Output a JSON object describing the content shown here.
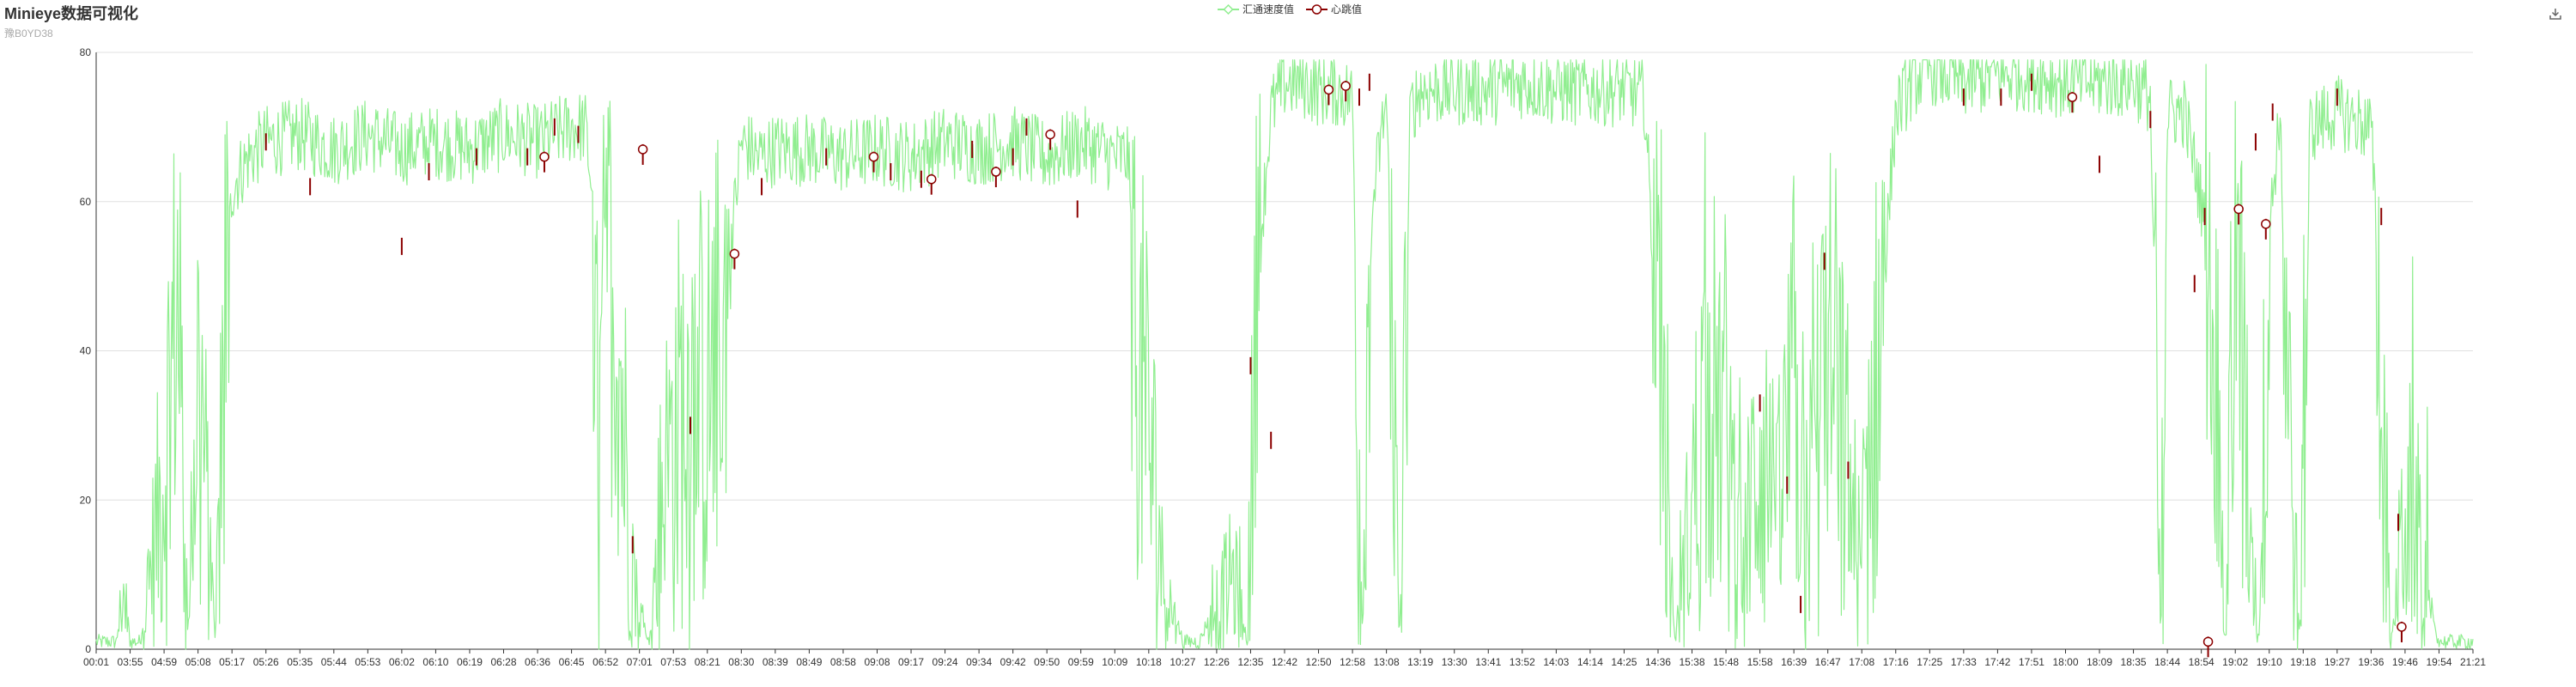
{
  "title": "Minieye数据可视化",
  "subtitle": "豫B0YD38",
  "legend": [
    {
      "name": "汇通速度值",
      "color": "#90ee90",
      "icon": "diamond-hollow-line"
    },
    {
      "name": "心跳值",
      "color": "#8b0000",
      "icon": "circle-hollow-line"
    }
  ],
  "toolbox": {
    "icon": "download-icon"
  },
  "chart_data": {
    "type": "line",
    "grid": true,
    "legend_position": "top-center",
    "ylim": [
      0,
      80
    ],
    "y_ticks": [
      0,
      20,
      40,
      60,
      80
    ],
    "x_tick_labels": [
      "00:01",
      "03:55",
      "04:59",
      "05:08",
      "05:17",
      "05:26",
      "05:35",
      "05:44",
      "05:53",
      "06:02",
      "06:10",
      "06:19",
      "06:28",
      "06:36",
      "06:45",
      "06:52",
      "07:01",
      "07:53",
      "08:21",
      "08:30",
      "08:39",
      "08:49",
      "08:58",
      "09:08",
      "09:17",
      "09:24",
      "09:34",
      "09:42",
      "09:50",
      "09:59",
      "10:09",
      "10:18",
      "10:27",
      "12:26",
      "12:35",
      "12:42",
      "12:50",
      "12:58",
      "13:08",
      "13:19",
      "13:30",
      "13:41",
      "13:52",
      "14:03",
      "14:14",
      "14:25",
      "14:36",
      "15:38",
      "15:48",
      "15:58",
      "16:39",
      "16:47",
      "17:08",
      "17:16",
      "17:25",
      "17:33",
      "17:42",
      "17:51",
      "18:00",
      "18:09",
      "18:35",
      "18:44",
      "18:54",
      "19:02",
      "19:10",
      "19:18",
      "19:27",
      "19:36",
      "19:46",
      "19:54",
      "21:21"
    ],
    "series": [
      {
        "name": "汇通速度值",
        "color": "#90ee90",
        "style": "line",
        "anchors": [
          [
            0,
            0
          ],
          [
            0.6,
            0
          ],
          [
            0.8,
            9
          ],
          [
            1.0,
            0
          ],
          [
            1.3,
            0
          ],
          [
            2.0,
            24
          ],
          [
            2.4,
            48
          ],
          [
            2.7,
            0
          ],
          [
            3.0,
            40
          ],
          [
            3.5,
            0
          ],
          [
            3.8,
            45
          ],
          [
            4.0,
            62
          ],
          [
            4.5,
            66
          ],
          [
            5.0,
            68
          ],
          [
            6.0,
            69
          ],
          [
            6.5,
            68
          ],
          [
            7.0,
            67
          ],
          [
            8.0,
            69
          ],
          [
            9.0,
            67
          ],
          [
            10,
            68
          ],
          [
            11,
            67
          ],
          [
            12,
            69
          ],
          [
            13,
            68
          ],
          [
            14,
            70
          ],
          [
            14.4,
            70
          ],
          [
            14.6,
            62
          ],
          [
            14.8,
            20
          ],
          [
            15.0,
            55
          ],
          [
            15.4,
            40
          ],
          [
            15.8,
            10
          ],
          [
            16.0,
            5
          ],
          [
            16.3,
            0
          ],
          [
            16.6,
            18
          ],
          [
            17.0,
            28
          ],
          [
            17.5,
            35
          ],
          [
            18.0,
            33
          ],
          [
            18.5,
            45
          ],
          [
            19.0,
            68
          ],
          [
            19.5,
            66
          ],
          [
            20,
            67
          ],
          [
            21,
            67
          ],
          [
            22,
            66
          ],
          [
            23,
            67
          ],
          [
            24,
            66
          ],
          [
            25,
            68
          ],
          [
            26,
            67
          ],
          [
            27,
            68
          ],
          [
            28,
            66
          ],
          [
            29,
            68
          ],
          [
            30,
            66
          ],
          [
            30.4,
            66
          ],
          [
            30.6,
            40
          ],
          [
            31.0,
            30
          ],
          [
            31.4,
            10
          ],
          [
            32.0,
            0
          ],
          [
            32.5,
            0
          ],
          [
            33.0,
            6
          ],
          [
            33.5,
            10
          ],
          [
            33.9,
            0
          ],
          [
            34.2,
            50
          ],
          [
            34.6,
            72
          ],
          [
            35.0,
            76
          ],
          [
            35.5,
            76
          ],
          [
            36.0,
            75
          ],
          [
            36.5,
            75
          ],
          [
            37.0,
            74
          ],
          [
            37.3,
            0
          ],
          [
            37.6,
            60
          ],
          [
            38.0,
            74
          ],
          [
            38.4,
            0
          ],
          [
            38.7,
            72
          ],
          [
            39,
            75
          ],
          [
            40,
            75
          ],
          [
            41,
            75
          ],
          [
            42,
            76
          ],
          [
            43,
            75
          ],
          [
            44,
            75
          ],
          [
            45,
            75
          ],
          [
            45.6,
            74
          ],
          [
            46.0,
            40
          ],
          [
            46.5,
            0
          ],
          [
            47.0,
            20
          ],
          [
            47.5,
            35
          ],
          [
            48.0,
            30
          ],
          [
            48.5,
            10
          ],
          [
            49.0,
            30
          ],
          [
            49.5,
            15
          ],
          [
            50.0,
            35
          ],
          [
            50.5,
            20
          ],
          [
            51.0,
            40
          ],
          [
            51.5,
            25
          ],
          [
            52.0,
            10
          ],
          [
            52.5,
            40
          ],
          [
            53.0,
            72
          ],
          [
            53.5,
            76
          ],
          [
            54,
            78
          ],
          [
            55,
            76
          ],
          [
            56,
            77
          ],
          [
            57,
            77
          ],
          [
            58,
            76
          ],
          [
            59,
            76
          ],
          [
            60,
            76
          ],
          [
            60.5,
            74
          ],
          [
            60.8,
            0
          ],
          [
            61.0,
            72
          ],
          [
            61.5,
            72
          ],
          [
            62.0,
            60
          ],
          [
            62.4,
            45
          ],
          [
            62.7,
            0
          ],
          [
            63.0,
            55
          ],
          [
            63.4,
            20
          ],
          [
            63.7,
            0
          ],
          [
            64.0,
            55
          ],
          [
            64.3,
            72
          ],
          [
            64.6,
            30
          ],
          [
            64.9,
            0
          ],
          [
            65.2,
            70
          ],
          [
            66,
            72
          ],
          [
            66.5,
            71
          ],
          [
            67,
            70
          ],
          [
            67.3,
            40
          ],
          [
            67.6,
            0
          ],
          [
            68.0,
            20
          ],
          [
            68.4,
            15
          ],
          [
            68.7,
            5
          ],
          [
            69.0,
            0
          ],
          [
            70,
            0
          ]
        ],
        "note_amplitude": "dense oscillating samples between anchors"
      },
      {
        "name": "心跳值",
        "color": "#8b0000",
        "style": "segments-with-markers",
        "markers": [
          [
            13.2,
            66
          ],
          [
            16.1,
            67
          ],
          [
            18.8,
            53
          ],
          [
            22.9,
            66
          ],
          [
            24.6,
            63
          ],
          [
            26.5,
            64
          ],
          [
            28.1,
            69
          ],
          [
            36.3,
            75
          ],
          [
            36.8,
            75.5
          ],
          [
            58.2,
            74
          ],
          [
            62.2,
            1
          ],
          [
            63.1,
            59
          ],
          [
            63.9,
            57
          ],
          [
            67.9,
            3
          ]
        ]
      }
    ]
  }
}
